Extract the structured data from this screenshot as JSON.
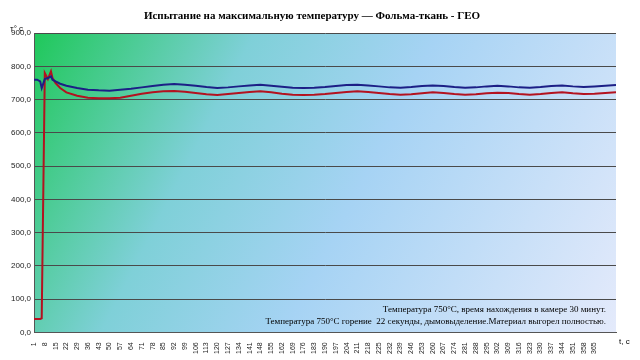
{
  "chart_data": {
    "type": "line",
    "title": "Испытание на максимальную температуру — Фольма-ткань - ГЕО",
    "y_label": "т° с",
    "x_label": "t, c",
    "annotations": [
      "Температура 750°С, время нахождения в камере 30 минут.",
      "Температура 750°С горение  22 секунды, дымовыделение.Материал выгорел полностью."
    ],
    "x": [
      1,
      3,
      5,
      6,
      8,
      10,
      12,
      13,
      15,
      18,
      22,
      29,
      36,
      43,
      50,
      57,
      64,
      71,
      78,
      85,
      92,
      99,
      106,
      113,
      120,
      127,
      134,
      141,
      148,
      155,
      162,
      169,
      176,
      183,
      190,
      197,
      204,
      211,
      218,
      225,
      232,
      239,
      246,
      253,
      260,
      267,
      274,
      281,
      288,
      295,
      302,
      309,
      316,
      323,
      330,
      337,
      344,
      351,
      358,
      365,
      372,
      379
    ],
    "series": [
      {
        "color": "#1c1f86",
        "values": [
          760,
          760,
          755,
          735,
          762,
          765,
          770,
          760,
          755,
          748,
          742,
          735,
          730,
          728,
          727,
          730,
          733,
          737,
          741,
          745,
          747,
          745,
          742,
          738,
          735,
          737,
          740,
          743,
          745,
          742,
          739,
          736,
          735,
          736,
          738,
          741,
          744,
          745,
          743,
          740,
          737,
          736,
          738,
          741,
          743,
          741,
          738,
          736,
          737,
          740,
          742,
          740,
          737,
          736,
          738,
          741,
          743,
          740,
          738,
          740,
          742,
          744
        ]
      },
      {
        "color": "#b3121f",
        "values": [
          40,
          40,
          40,
          42,
          780,
          762,
          785,
          765,
          750,
          735,
          722,
          712,
          706,
          704,
          704,
          706,
          712,
          718,
          722,
          725,
          726,
          724,
          720,
          716,
          714,
          717,
          720,
          723,
          725,
          722,
          718,
          715,
          714,
          715,
          717,
          720,
          723,
          725,
          723,
          720,
          717,
          715,
          716,
          719,
          722,
          720,
          717,
          715,
          716,
          719,
          721,
          720,
          717,
          715,
          717,
          720,
          722,
          719,
          717,
          718,
          720,
          722
        ]
      }
    ],
    "xlim": [
      1,
      379
    ],
    "xticks": [
      1,
      8,
      15,
      22,
      29,
      36,
      43,
      50,
      57,
      64,
      71,
      78,
      85,
      92,
      99,
      106,
      113,
      120,
      127,
      134,
      141,
      148,
      155,
      162,
      169,
      176,
      183,
      190,
      197,
      204,
      211,
      218,
      225,
      232,
      239,
      246,
      253,
      260,
      267,
      274,
      281,
      288,
      295,
      302,
      309,
      316,
      323,
      330,
      337,
      344,
      351,
      358,
      365
    ],
    "ylim": [
      0,
      900
    ],
    "yticks": [
      {
        "value": 0,
        "label": "0,0"
      },
      {
        "value": 100,
        "label": "100,0"
      },
      {
        "value": 200,
        "label": "200,0"
      },
      {
        "value": 300,
        "label": "300,0"
      },
      {
        "value": 400,
        "label": "400,0"
      },
      {
        "value": 500,
        "label": "500,0"
      },
      {
        "value": 600,
        "label": "600,0"
      },
      {
        "value": 700,
        "label": "700,0"
      },
      {
        "value": 800,
        "label": "800,0"
      },
      {
        "value": 900,
        "label": "900,0"
      }
    ],
    "grid": true
  }
}
